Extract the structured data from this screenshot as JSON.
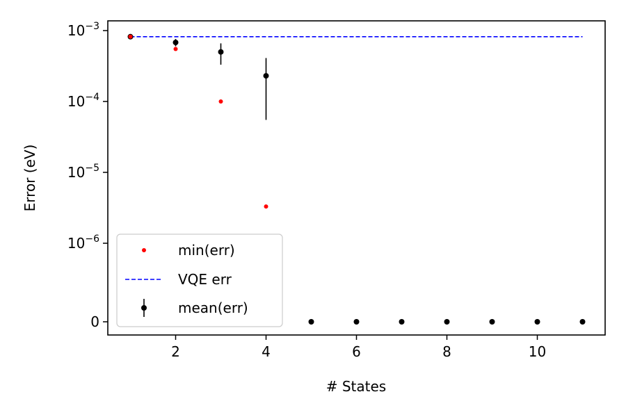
{
  "chart_data": {
    "type": "scatter",
    "xlabel": "# States",
    "ylabel": "Error (eV)",
    "xlim": [
      0.5,
      11.5
    ],
    "x_ticks": [
      2,
      4,
      6,
      8,
      10
    ],
    "y_scale": "symlog",
    "y_ticks": [
      {
        "value": 0,
        "base": "0",
        "exp": ""
      },
      {
        "value": 1e-06,
        "base": "10",
        "exp": "−6"
      },
      {
        "value": 1e-05,
        "base": "10",
        "exp": "−5"
      },
      {
        "value": 0.0001,
        "base": "10",
        "exp": "−4"
      },
      {
        "value": 0.001,
        "base": "10",
        "exp": "−3"
      }
    ],
    "grid": false,
    "legend_position": "lower-left",
    "colors": {
      "min": "#ff0000",
      "vqe": "#0000ff",
      "mean": "#000000"
    },
    "series": [
      {
        "name": "min(err)",
        "style": "marker",
        "x": [
          1,
          2,
          3,
          4
        ],
        "y": [
          0.00082,
          0.00055,
          0.0001,
          3.3e-06
        ]
      },
      {
        "name": "VQE err",
        "style": "dashed-line",
        "x": [
          1,
          11
        ],
        "y": [
          0.00082,
          0.00082
        ]
      },
      {
        "name": "mean(err)",
        "style": "errorbar",
        "x": [
          1,
          2,
          3,
          4,
          5,
          6,
          7,
          8,
          9,
          10,
          11
        ],
        "y": [
          0.00082,
          0.00068,
          0.0005,
          0.00023,
          0,
          0,
          0,
          0,
          0,
          0,
          0
        ],
        "yerr_low": [
          0.00082,
          0.0006,
          0.00033,
          5.5e-05,
          0,
          0,
          0,
          0,
          0,
          0,
          0
        ],
        "yerr_high": [
          0.00082,
          0.00076,
          0.00066,
          0.00041,
          0,
          0,
          0,
          0,
          0,
          0,
          0
        ]
      }
    ]
  }
}
